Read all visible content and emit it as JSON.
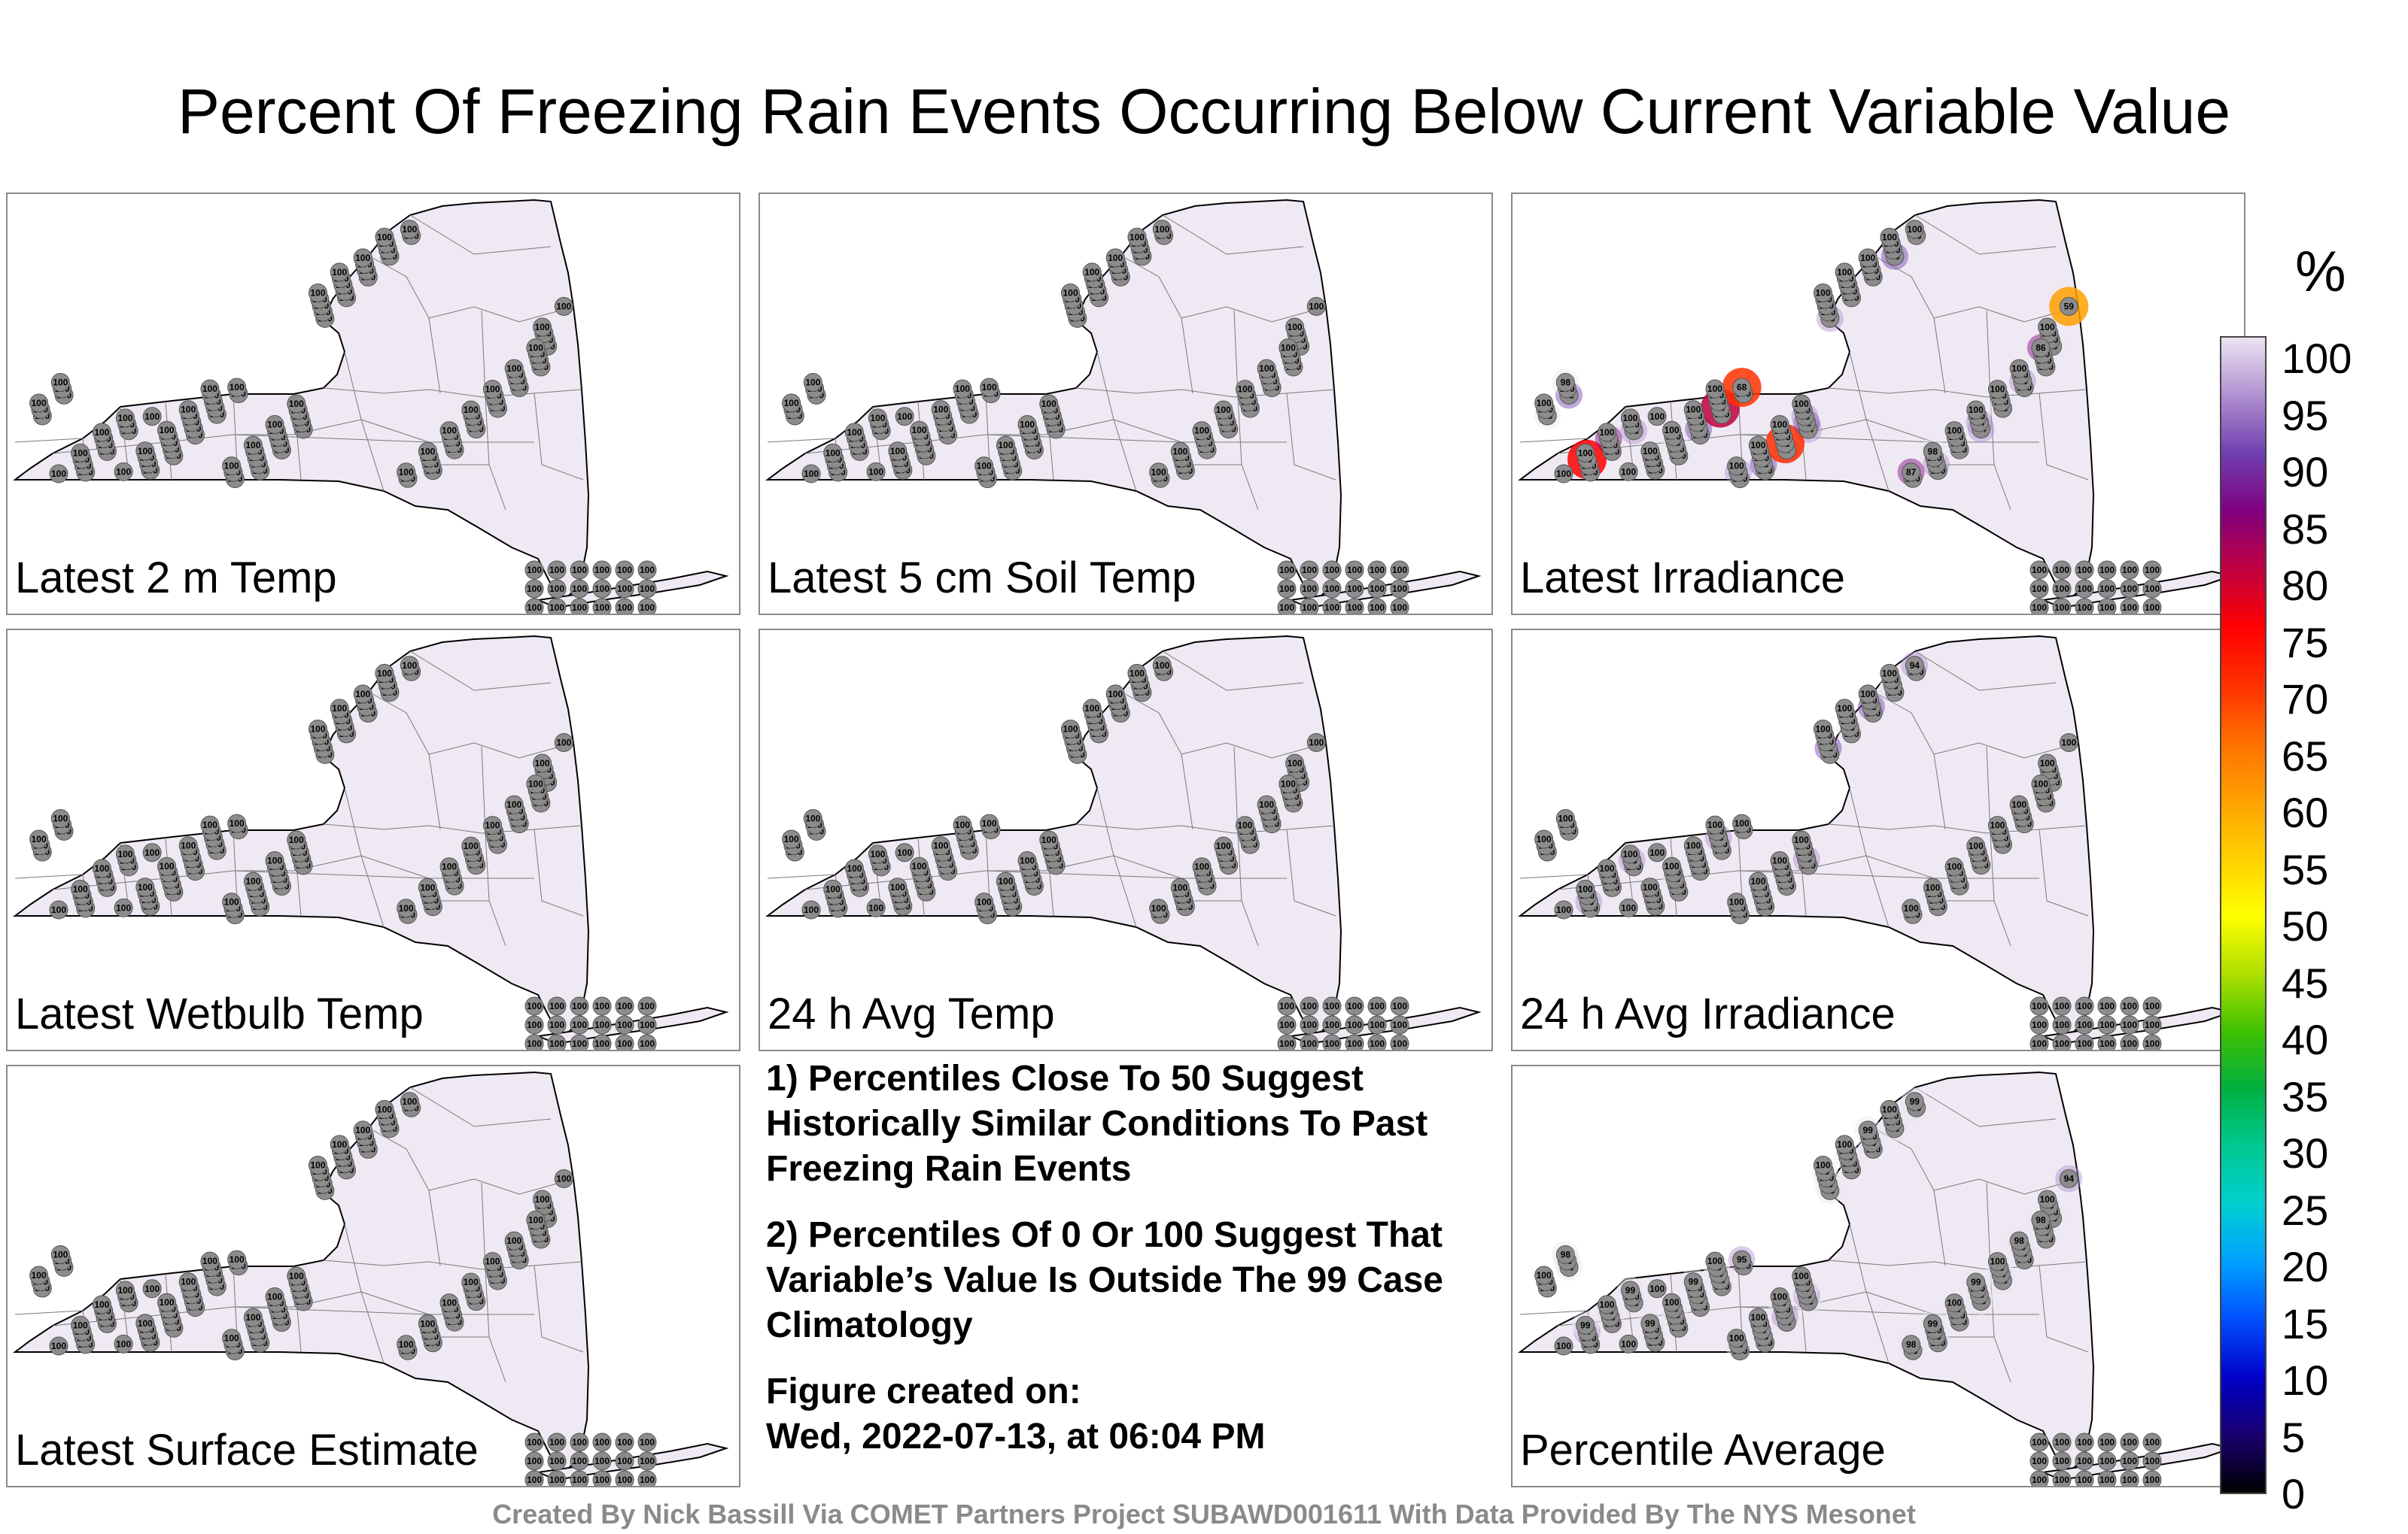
{
  "title": "Percent Of Freezing Rain Events Occurring Below Current Variable Value",
  "panels": [
    {
      "label": "Latest 2 m Temp",
      "values": [
        "100",
        "100",
        "100",
        "100",
        "100",
        "100",
        "100",
        "100",
        "100",
        "100",
        "100",
        "100",
        "100",
        "100",
        "100",
        "100",
        "100",
        "100",
        "100",
        "100",
        "100",
        "100",
        "100",
        "100",
        "100",
        "100",
        "100",
        "100",
        "100",
        "100",
        "100",
        "100",
        "100",
        "100",
        "100",
        "100",
        "100",
        "100",
        "100",
        "100",
        "100",
        "100",
        "100",
        "100",
        "100",
        "100",
        "100",
        "100",
        "100",
        "100",
        "100",
        "100",
        "100",
        "100",
        "100",
        "100",
        "100",
        "100",
        "100",
        "100",
        "100",
        "100",
        "100",
        "100",
        "100",
        "100",
        "100",
        "100",
        "100",
        "100",
        "100",
        "100",
        "100",
        "100",
        "100",
        "100",
        "100",
        "100",
        "100",
        "100",
        "100",
        "100",
        "100",
        "100",
        "100",
        "100",
        "100",
        "100",
        "100",
        "100",
        "100",
        "100",
        "100",
        "100",
        "100",
        "100",
        "100",
        "100",
        "100",
        "100",
        "100",
        "100",
        "100",
        "100",
        "100",
        "100",
        "100",
        "100",
        "100",
        "100",
        "100",
        "100",
        "100",
        "100",
        "100",
        "100",
        "100",
        "100",
        "100",
        "100",
        "100",
        "100",
        "100",
        "100",
        "100",
        "100",
        "100",
        "100"
      ]
    },
    {
      "label": "Latest 5 cm Soil Temp",
      "values": [
        "100",
        "100",
        "100",
        "100",
        "100",
        "100",
        "100",
        "100",
        "100",
        "100",
        "100",
        "100",
        "100",
        "100",
        "100",
        "100",
        "100",
        "100",
        "100",
        "100",
        "100",
        "100",
        "100",
        "100",
        "100",
        "100",
        "100",
        "100",
        "100",
        "100",
        "100",
        "100",
        "100",
        "100",
        "100",
        "100",
        "100",
        "100",
        "100",
        "100",
        "100",
        "100",
        "100",
        "100",
        "100",
        "100",
        "100",
        "100",
        "100",
        "100",
        "100",
        "100",
        "100",
        "100",
        "100",
        "100",
        "100",
        "100",
        "100",
        "100",
        "100",
        "100",
        "100",
        "100",
        "100",
        "100",
        "100",
        "100",
        "100",
        "100",
        "100",
        "100",
        "100",
        "100",
        "100",
        "100",
        "100",
        "100",
        "100",
        "100",
        "100",
        "100",
        "100",
        "100",
        "100",
        "100",
        "100",
        "100",
        "100",
        "100",
        "100",
        "100",
        "100",
        "100",
        "100",
        "100",
        "100",
        "100",
        "100",
        "100",
        "100",
        "100",
        "100",
        "100",
        "100",
        "100",
        "100",
        "100",
        "100",
        "100",
        "100",
        "100",
        "100",
        "100",
        "100",
        "100",
        "100",
        "100",
        "100",
        "100",
        "100",
        "100",
        "100",
        "100",
        "100",
        "100",
        "100",
        "100"
      ]
    },
    {
      "label": "Latest Irradiance",
      "values": [
        "100",
        "100",
        "100",
        "100",
        "100",
        "100",
        "97",
        "94",
        "93",
        "100",
        "100",
        "88",
        "98",
        "100",
        "100",
        "94",
        "98",
        "100",
        "100",
        "98",
        "98",
        "91",
        "100",
        "100",
        "93",
        "100",
        "100",
        "89",
        "79",
        "68",
        "88",
        "72",
        "92",
        "100",
        "100",
        "100",
        "100",
        "100",
        "97",
        "100",
        "94",
        "100",
        "96",
        "100",
        "100",
        "100",
        "100",
        "100",
        "100",
        "100",
        "100",
        "98",
        "100",
        "100",
        "100",
        "100",
        "100",
        "96",
        "100",
        "100",
        "100",
        "100",
        "100",
        "100",
        "100",
        "100",
        "100",
        "100",
        "100",
        "100",
        "100",
        "98",
        "76",
        "87",
        "100",
        "100",
        "100",
        "100",
        "100",
        "96",
        "100",
        "100",
        "100",
        "100",
        "100",
        "100",
        "100",
        "87",
        "98",
        "100",
        "100",
        "100",
        "100",
        "86",
        "100",
        "59",
        "100",
        "100",
        "100",
        "100",
        "100",
        "100",
        "100",
        "100",
        "100",
        "100",
        "100",
        "100",
        "100",
        "100",
        "100",
        "100",
        "100",
        "100",
        "100",
        "100",
        "100",
        "100",
        "100",
        "100",
        "100",
        "100",
        "100",
        "100",
        "100",
        "100",
        "100",
        "100"
      ]
    },
    {
      "label": "Latest Wetbulb Temp",
      "values": [
        "100",
        "100",
        "100",
        "100",
        "100",
        "100",
        "100",
        "100",
        "100",
        "100",
        "100",
        "100",
        "100",
        "100",
        "100",
        "100",
        "100",
        "100",
        "100",
        "100",
        "100",
        "100",
        "100",
        "100",
        "100",
        "100",
        "100",
        "100",
        "100",
        "100",
        "100",
        "100",
        "100",
        "100",
        "100",
        "100",
        "100",
        "100",
        "100",
        "100",
        "100",
        "100",
        "100",
        "100",
        "100",
        "100",
        "100",
        "100",
        "100",
        "100",
        "100",
        "100",
        "100",
        "100",
        "100",
        "100",
        "100",
        "100",
        "100",
        "100",
        "100",
        "100",
        "100",
        "100",
        "100",
        "100",
        "100",
        "100",
        "100",
        "100",
        "100",
        "100",
        "100",
        "100",
        "100",
        "100",
        "100",
        "100",
        "100",
        "100",
        "100",
        "100",
        "100",
        "100",
        "100",
        "100",
        "100",
        "100",
        "100",
        "100",
        "100",
        "100",
        "100",
        "100",
        "100",
        "100",
        "100",
        "100",
        "100",
        "100",
        "100",
        "100",
        "100",
        "100",
        "100",
        "100",
        "100",
        "100",
        "100",
        "100",
        "100",
        "100",
        "100",
        "100",
        "100",
        "100",
        "100",
        "100",
        "100",
        "100",
        "100",
        "100",
        "100",
        "100",
        "100",
        "100",
        "100",
        "100"
      ]
    },
    {
      "label": "24 h Avg Temp",
      "values": [
        "100",
        "100",
        "100",
        "100",
        "100",
        "100",
        "100",
        "100",
        "100",
        "100",
        "100",
        "100",
        "100",
        "100",
        "100",
        "100",
        "100",
        "100",
        "100",
        "100",
        "100",
        "100",
        "100",
        "100",
        "100",
        "100",
        "100",
        "100",
        "100",
        "100",
        "100",
        "100",
        "100",
        "100",
        "100",
        "100",
        "100",
        "100",
        "100",
        "100",
        "100",
        "100",
        "100",
        "100",
        "100",
        "100",
        "100",
        "100",
        "100",
        "100",
        "100",
        "100",
        "100",
        "100",
        "100",
        "100",
        "100",
        "100",
        "100",
        "100",
        "100",
        "100",
        "100",
        "100",
        "100",
        "100",
        "100",
        "100",
        "100",
        "100",
        "100",
        "100",
        "100",
        "100",
        "100",
        "100",
        "100",
        "100",
        "100",
        "100",
        "100",
        "100",
        "100",
        "100",
        "100",
        "100",
        "100",
        "100",
        "100",
        "100",
        "100",
        "100",
        "100",
        "100",
        "100",
        "100",
        "100",
        "100",
        "100",
        "100",
        "100",
        "100",
        "100",
        "100",
        "100",
        "100",
        "100",
        "100",
        "100",
        "100",
        "100",
        "100",
        "100",
        "100",
        "100",
        "100",
        "100",
        "100",
        "100",
        "100",
        "100",
        "100",
        "100",
        "100",
        "100",
        "100",
        "100",
        "100"
      ]
    },
    {
      "label": "24 h Avg Irradiance",
      "values": [
        "100",
        "100",
        "100",
        "100",
        "100",
        "100",
        "100",
        "100",
        "100",
        "100",
        "100",
        "100",
        "100",
        "100",
        "100",
        "100",
        "100",
        "100",
        "100",
        "100",
        "100",
        "100",
        "100",
        "100",
        "100",
        "100",
        "100",
        "100",
        "100",
        "100",
        "100",
        "100",
        "95",
        "92",
        "98",
        "92",
        "98",
        "94",
        "100",
        "100",
        "100",
        "100",
        "100",
        "100",
        "100",
        "100",
        "100",
        "95",
        "100",
        "95",
        "100",
        "98",
        "100",
        "95",
        "100",
        "100",
        "100",
        "100",
        "100",
        "100",
        "100",
        "100",
        "100",
        "100",
        "100",
        "100",
        "100",
        "100",
        "100",
        "100",
        "100",
        "100",
        "100",
        "100",
        "100",
        "100",
        "100",
        "100",
        "100",
        "100",
        "100",
        "100",
        "100",
        "100",
        "100",
        "100",
        "100",
        "100",
        "100",
        "100",
        "100",
        "100",
        "100",
        "100",
        "100",
        "100",
        "100",
        "100",
        "100",
        "100",
        "100",
        "100",
        "100",
        "100",
        "100",
        "100",
        "100",
        "100",
        "100",
        "100",
        "100",
        "100",
        "100",
        "100",
        "100",
        "100",
        "100",
        "100",
        "100",
        "100",
        "100",
        "100",
        "100",
        "100",
        "100",
        "100",
        "100",
        "100"
      ]
    },
    {
      "label": "Latest Surface Estimate",
      "values": [
        "100",
        "100",
        "100",
        "100",
        "100",
        "100",
        "100",
        "100",
        "100",
        "100",
        "100",
        "100",
        "100",
        "100",
        "100",
        "100",
        "100",
        "100",
        "100",
        "100",
        "100",
        "100",
        "100",
        "100",
        "100",
        "100",
        "100",
        "100",
        "100",
        "100",
        "100",
        "100",
        "100",
        "100",
        "100",
        "100",
        "100",
        "100",
        "100",
        "100",
        "100",
        "100",
        "100",
        "100",
        "100",
        "100",
        "100",
        "100",
        "100",
        "100",
        "100",
        "100",
        "100",
        "100",
        "100",
        "100",
        "100",
        "100",
        "100",
        "100",
        "100",
        "100",
        "100",
        "100",
        "100",
        "100",
        "100",
        "100",
        "100",
        "100",
        "100",
        "100",
        "100",
        "100",
        "100",
        "100",
        "100",
        "100",
        "100",
        "100",
        "100",
        "100",
        "100",
        "100",
        "100",
        "100",
        "100",
        "100",
        "100",
        "100",
        "100",
        "100",
        "100",
        "100",
        "100",
        "100",
        "100",
        "100",
        "100",
        "100",
        "100",
        "100",
        "100",
        "100",
        "100",
        "100",
        "100",
        "100",
        "100",
        "100",
        "100",
        "100",
        "100",
        "100",
        "100",
        "100",
        "100",
        "100",
        "100",
        "100",
        "100",
        "100",
        "100",
        "100",
        "100",
        "100",
        "100",
        "100"
      ]
    },
    {
      "label": "Percentile Average",
      "values": [
        "100",
        "100",
        "100",
        "100",
        "100",
        "100",
        "99",
        "99",
        "99",
        "100",
        "100",
        "99",
        "99",
        "100",
        "100",
        "99",
        "99",
        "100",
        "100",
        "99",
        "100",
        "99",
        "100",
        "100",
        "99",
        "100",
        "100",
        "99",
        "98",
        "95",
        "98",
        "97",
        "96",
        "99",
        "100",
        "99",
        "100",
        "99",
        "99",
        "100",
        "99",
        "99",
        "99",
        "99",
        "100",
        "100",
        "99",
        "100",
        "99",
        "100",
        "99",
        "99",
        "100",
        "99",
        "100",
        "99",
        "100",
        "99",
        "100",
        "99",
        "100",
        "100",
        "99",
        "100",
        "99",
        "100",
        "99",
        "99",
        "100",
        "99",
        "100",
        "98",
        "97",
        "98",
        "99",
        "100",
        "99",
        "100",
        "99",
        "99",
        "100",
        "99",
        "100",
        "99",
        "100",
        "99",
        "100",
        "98",
        "99",
        "100",
        "99",
        "100",
        "98",
        "98",
        "100",
        "94",
        "100",
        "99",
        "100",
        "100",
        "99",
        "100",
        "99",
        "100",
        "100",
        "100",
        "100",
        "100",
        "100",
        "100",
        "100",
        "100",
        "100",
        "100",
        "100",
        "100",
        "100",
        "100",
        "100",
        "100",
        "100",
        "100",
        "100",
        "100",
        "100",
        "100",
        "100",
        "100"
      ]
    }
  ],
  "notes": {
    "n1": "1) Percentiles Close To 50 Suggest Historically Similar Conditions To Past Freezing Rain Events",
    "n2": "2) Percentiles Of 0 Or 100 Suggest That Variable’s Value Is Outside The 99 Case Climatology",
    "n3a": "Figure created on:",
    "n3b": "Wed, 2022-07-13, at 06:04 PM"
  },
  "credit": "Created By Nick Bassill Via COMET Partners Project SUBAWD001611 With Data Provided By The NYS Mesonet",
  "colorbar": {
    "unit": "%",
    "ticks": [
      "0",
      "5",
      "10",
      "15",
      "20",
      "25",
      "30",
      "35",
      "40",
      "45",
      "50",
      "55",
      "60",
      "65",
      "70",
      "75",
      "80",
      "85",
      "90",
      "95",
      "100"
    ],
    "colors": [
      "#000000",
      "#1a0070",
      "#0000c8",
      "#0050ff",
      "#00a0ff",
      "#00d0d0",
      "#00c890",
      "#00b040",
      "#40c000",
      "#b0e000",
      "#ffff00",
      "#ffd000",
      "#ffa000",
      "#ff7000",
      "#ff3000",
      "#ff0000",
      "#c00040",
      "#800080",
      "#7040b0",
      "#b090d0",
      "#ece4f2"
    ]
  }
}
